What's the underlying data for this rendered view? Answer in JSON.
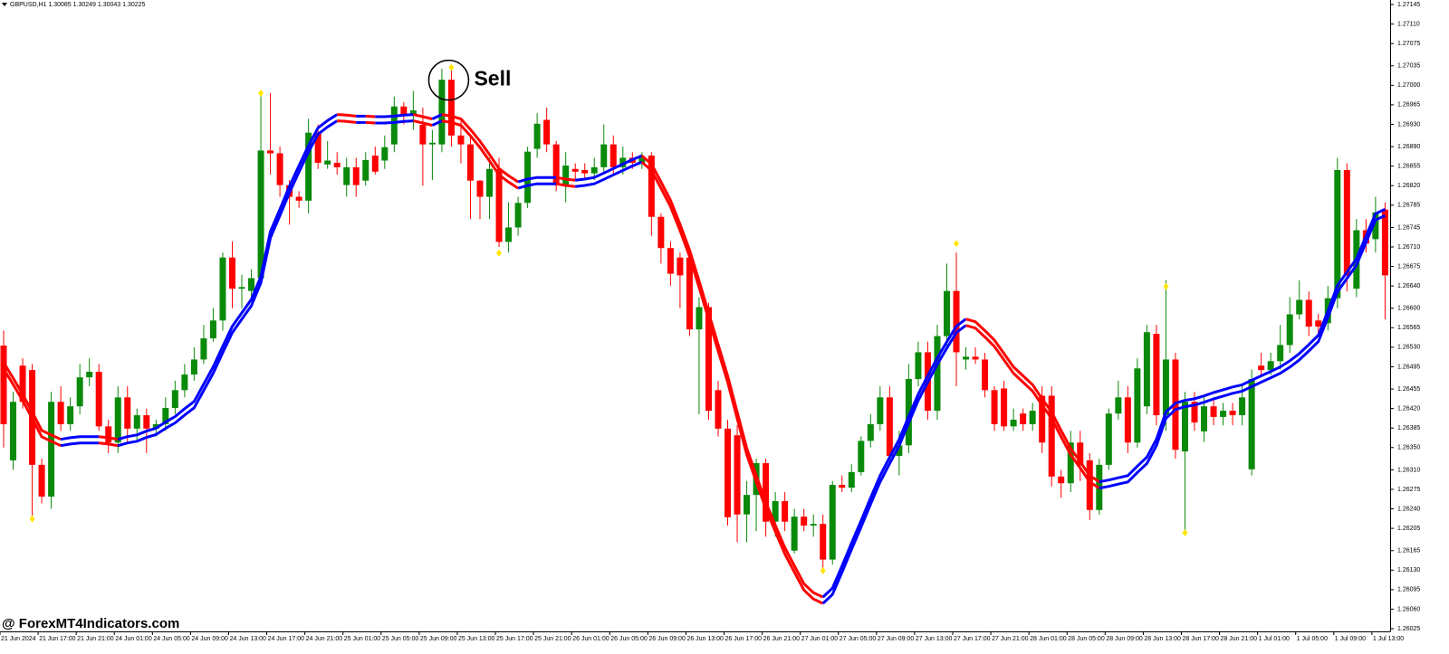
{
  "chart_data": {
    "type": "candlestick",
    "header": "GBPUSD,H1  1.30085 1.30249 1.30043 1.30225",
    "annotation": "Sell",
    "watermark": "@ ForexMT4Indicators.com",
    "ylim": [
      1.26025,
      1.27145
    ],
    "yticks": [
      1.27145,
      {
        "value": 1.2711,
        "label": "1.27110"
      },
      1.27075,
      1.27035,
      {
        "value": 1.27,
        "label": "1.27000"
      },
      1.26965,
      {
        "value": 1.2693,
        "label": "1.26930"
      },
      {
        "value": 1.2689,
        "label": "1.26890"
      },
      1.26855,
      {
        "value": 1.2682,
        "label": "1.26820"
      },
      1.26785,
      1.26745,
      {
        "value": 1.2671,
        "label": "1.26710"
      },
      1.26675,
      {
        "value": 1.2664,
        "label": "1.26640"
      },
      {
        "value": 1.266,
        "label": "1.26600"
      },
      1.26565,
      {
        "value": 1.2653,
        "label": "1.26530"
      },
      1.26495,
      1.26455,
      {
        "value": 1.2642,
        "label": "1.26420"
      },
      1.26385,
      {
        "value": 1.2635,
        "label": "1.26350"
      },
      {
        "value": 1.2631,
        "label": "1.26310"
      },
      1.26275,
      {
        "value": 1.2624,
        "label": "1.26240"
      },
      1.26205,
      1.26165,
      {
        "value": 1.2613,
        "label": "1.26130"
      },
      1.26095,
      {
        "value": 1.2606,
        "label": "1.26060"
      },
      1.26025
    ],
    "x_labels": [
      "21 Jun 2024",
      "21 Jun 17:00",
      "21 Jun 21:00",
      "24 Jun 01:00",
      "24 Jun 05:00",
      "24 Jun 09:00",
      "24 Jun 13:00",
      "24 Jun 17:00",
      "24 Jun 21:00",
      "25 Jun 01:00",
      "25 Jun 05:00",
      "25 Jun 09:00",
      "25 Jun 13:00",
      "25 Jun 17:00",
      "25 Jun 21:00",
      "26 Jun 01:00",
      "26 Jun 05:00",
      "26 Jun 09:00",
      "26 Jun 13:00",
      "26 Jun 17:00",
      "26 Jun 21:00",
      "27 Jun 01:00",
      "27 Jun 05:00",
      "27 Jun 09:00",
      "27 Jun 13:00",
      "27 Jun 17:00",
      "27 Jun 21:00",
      "28 Jun 01:00",
      "28 Jun 05:00",
      "28 Jun 09:00",
      "28 Jun 13:00",
      "28 Jun 17:00",
      "28 Jun 21:00",
      "1 Jul 01:00",
      "1 Jul 05:00",
      "1 Jul 09:00",
      "1 Jul 13:00"
    ],
    "label_every": 4,
    "bull_color": "#0a8a0a",
    "bear_color": "#ff0000",
    "ma_up_color": "#0000ff",
    "ma_down_color": "#ff0000",
    "signal_color": "#ffe600",
    "ohlc": [
      [
        1.26533,
        1.2656,
        1.2635,
        1.26392
      ],
      [
        1.26327,
        1.2645,
        1.2631,
        1.26432
      ],
      [
        1.26497,
        1.2651,
        1.2642,
        1.26432
      ],
      [
        1.26489,
        1.265,
        1.26222,
        1.26319
      ],
      [
        1.26319,
        1.2633,
        1.2625,
        1.26262
      ],
      [
        1.26262,
        1.2645,
        1.2624,
        1.26432
      ],
      [
        1.26432,
        1.2646,
        1.2638,
        1.26392
      ],
      [
        1.26392,
        1.2644,
        1.2638,
        1.26424
      ],
      [
        1.26424,
        1.265,
        1.2641,
        1.26476
      ],
      [
        1.26476,
        1.2651,
        1.2646,
        1.26486
      ],
      [
        1.26486,
        1.265,
        1.2638,
        1.26388
      ],
      [
        1.26388,
        1.264,
        1.2634,
        1.26359
      ],
      [
        1.26359,
        1.2646,
        1.2634,
        1.2644
      ],
      [
        1.2644,
        1.2646,
        1.2636,
        1.26384
      ],
      [
        1.26384,
        1.2642,
        1.2636,
        1.26408
      ],
      [
        1.26408,
        1.2642,
        1.2634,
        1.26384
      ],
      [
        1.26384,
        1.264,
        1.2637,
        1.26392
      ],
      [
        1.26392,
        1.2644,
        1.2638,
        1.26421
      ],
      [
        1.26421,
        1.2647,
        1.2641,
        1.26453
      ],
      [
        1.26453,
        1.265,
        1.2644,
        1.26481
      ],
      [
        1.26481,
        1.2653,
        1.2647,
        1.26508
      ],
      [
        1.26508,
        1.2657,
        1.265,
        1.26546
      ],
      [
        1.26546,
        1.266,
        1.2654,
        1.26578
      ],
      [
        1.26578,
        1.267,
        1.2656,
        1.26691
      ],
      [
        1.26691,
        1.2672,
        1.266,
        1.26635
      ],
      [
        1.26635,
        1.2666,
        1.266,
        1.26638
      ],
      [
        1.26631,
        1.2667,
        1.2662,
        1.26654
      ],
      [
        1.26654,
        1.26986,
        1.2664,
        1.26883
      ],
      [
        1.26883,
        1.26986,
        1.2684,
        1.26878
      ],
      [
        1.26878,
        1.2689,
        1.268,
        1.26821
      ],
      [
        1.26821,
        1.2683,
        1.2675,
        1.268
      ],
      [
        1.268,
        1.2681,
        1.2678,
        1.26793
      ],
      [
        1.26793,
        1.2694,
        1.2677,
        1.26915
      ],
      [
        1.26915,
        1.2693,
        1.2685,
        1.26861
      ],
      [
        1.26858,
        1.269,
        1.2685,
        1.26865
      ],
      [
        1.26861,
        1.2688,
        1.2684,
        1.26853
      ],
      [
        1.26821,
        1.2687,
        1.268,
        1.26853
      ],
      [
        1.26853,
        1.2687,
        1.268,
        1.26821
      ],
      [
        1.26829,
        1.2688,
        1.2682,
        1.26866
      ],
      [
        1.26874,
        1.2689,
        1.2684,
        1.26845
      ],
      [
        1.26865,
        1.2691,
        1.2685,
        1.26889
      ],
      [
        1.26894,
        1.2698,
        1.2688,
        1.26962
      ],
      [
        1.26962,
        1.2697,
        1.2693,
        1.26946
      ],
      [
        1.26946,
        1.2699,
        1.2692,
        1.26955
      ],
      [
        1.26929,
        1.2696,
        1.2682,
        1.26894
      ],
      [
        1.26894,
        1.2692,
        1.2683,
        1.26897
      ],
      [
        1.26894,
        1.2703,
        1.2688,
        1.2701
      ],
      [
        1.2701,
        1.27032,
        1.2689,
        1.2691
      ],
      [
        1.2691,
        1.2694,
        1.2686,
        1.26894
      ],
      [
        1.26894,
        1.2691,
        1.2676,
        1.26829
      ],
      [
        1.26829,
        1.2683,
        1.2676,
        1.268
      ],
      [
        1.268,
        1.2687,
        1.2676,
        1.2685
      ],
      [
        1.2685,
        1.2687,
        1.2671,
        1.26719
      ],
      [
        1.26719,
        1.2679,
        1.267,
        1.26745
      ],
      [
        1.26745,
        1.268,
        1.2673,
        1.26789
      ],
      [
        1.26789,
        1.2689,
        1.2678,
        1.26881
      ],
      [
        1.26886,
        1.2695,
        1.2687,
        1.26931
      ],
      [
        1.26938,
        1.2696,
        1.2688,
        1.26894
      ],
      [
        1.26894,
        1.269,
        1.2681,
        1.26821
      ],
      [
        1.26821,
        1.2688,
        1.2679,
        1.26856
      ],
      [
        1.2685,
        1.2686,
        1.2683,
        1.26845
      ],
      [
        1.26848,
        1.2686,
        1.2683,
        1.26842
      ],
      [
        1.26842,
        1.2687,
        1.2683,
        1.26853
      ],
      [
        1.26853,
        1.2693,
        1.2684,
        1.26894
      ],
      [
        1.26894,
        1.2691,
        1.2684,
        1.26853
      ],
      [
        1.26853,
        1.2689,
        1.2684,
        1.2687
      ],
      [
        1.2687,
        1.2688,
        1.2685,
        1.26861
      ],
      [
        1.26861,
        1.2688,
        1.2685,
        1.2687
      ],
      [
        1.26874,
        1.2688,
        1.2673,
        1.26764
      ],
      [
        1.26764,
        1.2677,
        1.2668,
        1.26708
      ],
      [
        1.26708,
        1.2672,
        1.2664,
        1.26662
      ],
      [
        1.26691,
        1.267,
        1.266,
        1.26659
      ],
      [
        1.26691,
        1.267,
        1.2655,
        1.26562
      ],
      [
        1.26562,
        1.2662,
        1.2641,
        1.26602
      ],
      [
        1.26602,
        1.2661,
        1.264,
        1.26416
      ],
      [
        1.26453,
        1.2647,
        1.2637,
        1.26384
      ],
      [
        1.26384,
        1.264,
        1.2621,
        1.26225
      ],
      [
        1.26372,
        1.2639,
        1.2618,
        1.2623
      ],
      [
        1.2623,
        1.2629,
        1.2618,
        1.26265
      ],
      [
        1.26265,
        1.2633,
        1.262,
        1.26322
      ],
      [
        1.26322,
        1.2633,
        1.2619,
        1.26217
      ],
      [
        1.26217,
        1.2627,
        1.2619,
        1.26254
      ],
      [
        1.26254,
        1.2627,
        1.262,
        1.26217
      ],
      [
        1.26165,
        1.2624,
        1.2616,
        1.26226
      ],
      [
        1.26226,
        1.2624,
        1.262,
        1.2621
      ],
      [
        1.2621,
        1.2623,
        1.2619,
        1.26213
      ],
      [
        1.26213,
        1.2623,
        1.2613,
        1.26149
      ],
      [
        1.26149,
        1.2629,
        1.2614,
        1.26283
      ],
      [
        1.26283,
        1.263,
        1.2627,
        1.26278
      ],
      [
        1.26278,
        1.2632,
        1.2627,
        1.26306
      ],
      [
        1.26306,
        1.2637,
        1.263,
        1.26362
      ],
      [
        1.26362,
        1.2641,
        1.2635,
        1.26392
      ],
      [
        1.26392,
        1.2646,
        1.2638,
        1.2644
      ],
      [
        1.2644,
        1.2646,
        1.2632,
        1.26335
      ],
      [
        1.26335,
        1.2638,
        1.263,
        1.26354
      ],
      [
        1.26354,
        1.265,
        1.2634,
        1.26473
      ],
      [
        1.26473,
        1.2654,
        1.2646,
        1.26521
      ],
      [
        1.26521,
        1.2654,
        1.264,
        1.26416
      ],
      [
        1.26416,
        1.2657,
        1.264,
        1.2655
      ],
      [
        1.2655,
        1.2668,
        1.2653,
        1.26631
      ],
      [
        1.26631,
        1.267,
        1.2646,
        1.26521
      ],
      [
        1.26508,
        1.2653,
        1.2649,
        1.26513
      ],
      [
        1.26513,
        1.2653,
        1.265,
        1.26508
      ],
      [
        1.26508,
        1.2652,
        1.2644,
        1.26453
      ],
      [
        1.26453,
        1.2646,
        1.2638,
        1.26392
      ],
      [
        1.26456,
        1.2647,
        1.2638,
        1.26388
      ],
      [
        1.26388,
        1.2642,
        1.2638,
        1.264
      ],
      [
        1.26411,
        1.2642,
        1.2638,
        1.26392
      ],
      [
        1.26392,
        1.2643,
        1.2638,
        1.26416
      ],
      [
        1.26443,
        1.2646,
        1.2634,
        1.26359
      ],
      [
        1.26443,
        1.2646,
        1.2628,
        1.26298
      ],
      [
        1.26298,
        1.2631,
        1.2626,
        1.26286
      ],
      [
        1.26286,
        1.2638,
        1.2627,
        1.26359
      ],
      [
        1.26359,
        1.2638,
        1.2629,
        1.26319
      ],
      [
        1.26327,
        1.2634,
        1.2622,
        1.26238
      ],
      [
        1.26238,
        1.2633,
        1.2623,
        1.26319
      ],
      [
        1.26319,
        1.2642,
        1.2631,
        1.26411
      ],
      [
        1.26411,
        1.2647,
        1.264,
        1.2644
      ],
      [
        1.2644,
        1.2646,
        1.2634,
        1.26359
      ],
      [
        1.26359,
        1.2651,
        1.2635,
        1.26492
      ],
      [
        1.26424,
        1.2657,
        1.2641,
        1.26557
      ],
      [
        1.26554,
        1.2657,
        1.2639,
        1.26408
      ],
      [
        1.26408,
        1.2665,
        1.2638,
        1.26508
      ],
      [
        1.26508,
        1.2652,
        1.2633,
        1.26346
      ],
      [
        1.26343,
        1.2645,
        1.262,
        1.26432
      ],
      [
        1.26432,
        1.2645,
        1.2638,
        1.26395
      ],
      [
        1.26379,
        1.2644,
        1.2636,
        1.26424
      ],
      [
        1.26424,
        1.2644,
        1.2639,
        1.26405
      ],
      [
        1.26405,
        1.2643,
        1.2639,
        1.26416
      ],
      [
        1.26416,
        1.2643,
        1.2639,
        1.26408
      ],
      [
        1.26408,
        1.2646,
        1.2639,
        1.2644
      ],
      [
        1.26311,
        1.2649,
        1.263,
        1.26473
      ],
      [
        1.26497,
        1.2652,
        1.2648,
        1.26489
      ],
      [
        1.26489,
        1.2652,
        1.2648,
        1.26505
      ],
      [
        1.26505,
        1.2657,
        1.2649,
        1.26534
      ],
      [
        1.26534,
        1.2662,
        1.2652,
        1.26589
      ],
      [
        1.26589,
        1.2665,
        1.2658,
        1.26615
      ],
      [
        1.26615,
        1.2663,
        1.2655,
        1.26567
      ],
      [
        1.26578,
        1.2659,
        1.2655,
        1.26567
      ],
      [
        1.26573,
        1.2664,
        1.2656,
        1.26618
      ],
      [
        1.26618,
        1.2687,
        1.266,
        1.26848
      ],
      [
        1.26848,
        1.2686,
        1.2663,
        1.26659
      ],
      [
        1.26635,
        1.2676,
        1.2662,
        1.2674
      ],
      [
        1.2674,
        1.2676,
        1.267,
        1.26716
      ],
      [
        1.26724,
        1.268,
        1.267,
        1.26772
      ],
      [
        1.26777,
        1.2679,
        1.2658,
        1.26659
      ]
    ],
    "ma": [
      1.26497,
      1.26469,
      1.2644,
      1.26408,
      1.26375,
      1.26367,
      1.26359,
      1.26362,
      1.26364,
      1.26364,
      1.26364,
      1.26362,
      1.26359,
      1.26364,
      1.26367,
      1.26374,
      1.26379,
      1.2639,
      1.264,
      1.26414,
      1.26427,
      1.26458,
      1.26489,
      1.26526,
      1.26562,
      1.26586,
      1.2661,
      1.26651,
      1.26732,
      1.26772,
      1.26813,
      1.2685,
      1.26886,
      1.26918,
      1.26931,
      1.26942,
      1.26941,
      1.26939,
      1.26939,
      1.26938,
      1.26938,
      1.26939,
      1.26941,
      1.26942,
      1.26938,
      1.26934,
      1.26942,
      1.26939,
      1.26934,
      1.26915,
      1.26894,
      1.2687,
      1.26845,
      1.26832,
      1.26821,
      1.26826,
      1.26829,
      1.26829,
      1.26829,
      1.26826,
      1.26824,
      1.26826,
      1.26829,
      1.26837,
      1.26845,
      1.26853,
      1.26861,
      1.26868,
      1.26853,
      1.26821,
      1.26788,
      1.26745,
      1.26699,
      1.26643,
      1.26586,
      1.26529,
      1.26473,
      1.26408,
      1.26343,
      1.26294,
      1.26246,
      1.26205,
      1.26165,
      1.26132,
      1.261,
      1.26084,
      1.26076,
      1.26092,
      1.26132,
      1.26173,
      1.26213,
      1.26254,
      1.26294,
      1.26327,
      1.26359,
      1.264,
      1.2644,
      1.26473,
      1.26505,
      1.26534,
      1.26562,
      1.26575,
      1.2657,
      1.26554,
      1.26537,
      1.26513,
      1.26489,
      1.26473,
      1.26457,
      1.26432,
      1.26408,
      1.26375,
      1.26343,
      1.26319,
      1.26294,
      1.26283,
      1.26286,
      1.2629,
      1.26294,
      1.26311,
      1.26327,
      1.26359,
      1.26408,
      1.26424,
      1.26429,
      1.26432,
      1.26437,
      1.26443,
      1.26448,
      1.26453,
      1.26457,
      1.26465,
      1.26473,
      1.26481,
      1.26489,
      1.265,
      1.26513,
      1.26529,
      1.26546,
      1.26589,
      1.26635,
      1.26659,
      1.26683,
      1.26724,
      1.26764,
      1.26772
    ],
    "signal_bars": [
      3,
      27,
      47,
      52,
      86,
      100,
      122,
      124
    ],
    "signal_prices": [
      1.26222,
      1.26986,
      1.27032,
      1.26699,
      1.26129,
      1.26716,
      1.26639,
      1.26197
    ],
    "annotated_signal": 2
  }
}
